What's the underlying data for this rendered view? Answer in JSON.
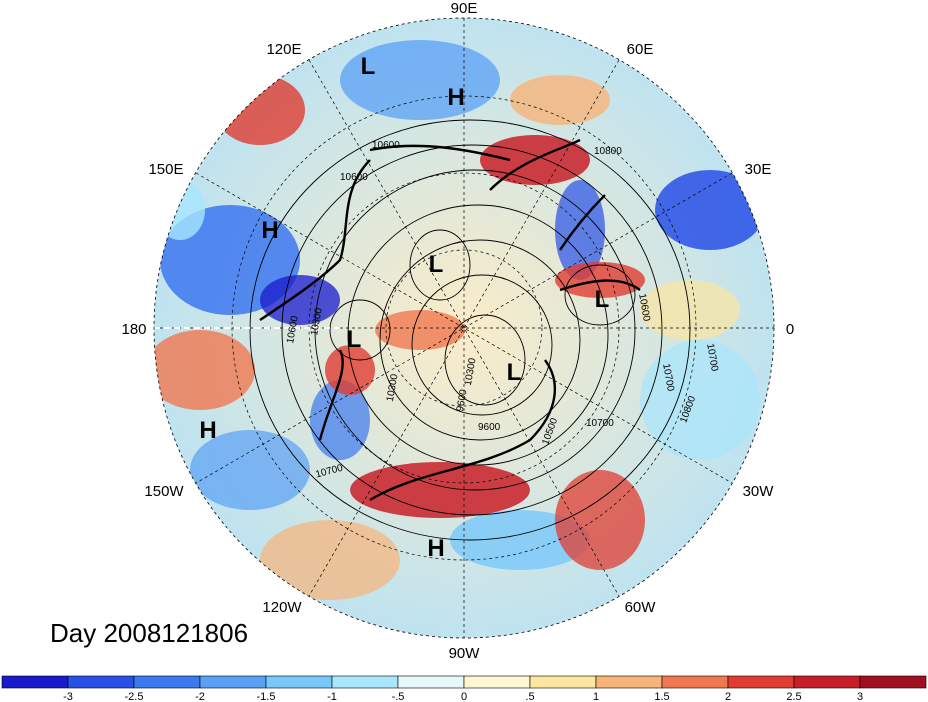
{
  "title": "Day 2008121806",
  "longitude_labels": [
    "90E",
    "60E",
    "30E",
    "0",
    "30W",
    "60W",
    "90W",
    "120W",
    "150W",
    "180",
    "150E",
    "120E"
  ],
  "pressure_centers": [
    {
      "label": "L",
      "lon": "120E area"
    },
    {
      "label": "H",
      "lon": "90E area"
    },
    {
      "label": "H",
      "lon": "150E area"
    },
    {
      "label": "L",
      "lon": "pole"
    },
    {
      "label": "L",
      "lon": "0 area"
    },
    {
      "label": "L",
      "lon": "180 area"
    },
    {
      "label": "L",
      "lon": "60W area"
    },
    {
      "label": "H",
      "lon": "150W area"
    },
    {
      "label": "H",
      "lon": "90W area"
    }
  ],
  "contour_labels": [
    "10600",
    "10800",
    "10300",
    "10600",
    "10700",
    "10600",
    "10700",
    "10800",
    "10700",
    "10500",
    "9600",
    "10300",
    "10700",
    "9600",
    "10300",
    "10600"
  ],
  "colorbar": {
    "ticks": [
      "-3",
      "-2.5",
      "-2",
      "-1.5",
      "-1",
      "-.5",
      "0",
      ".5",
      "1",
      "1.5",
      "2",
      "2.5",
      "3"
    ],
    "colors": [
      "#1a1acc",
      "#2850e6",
      "#3c78f0",
      "#5aa0f5",
      "#78c8fa",
      "#a8e6fc",
      "#e6f8fc",
      "#fcf6d2",
      "#fce6a0",
      "#f8b478",
      "#f07850",
      "#e03c32",
      "#c81e28",
      "#a01020"
    ]
  }
}
